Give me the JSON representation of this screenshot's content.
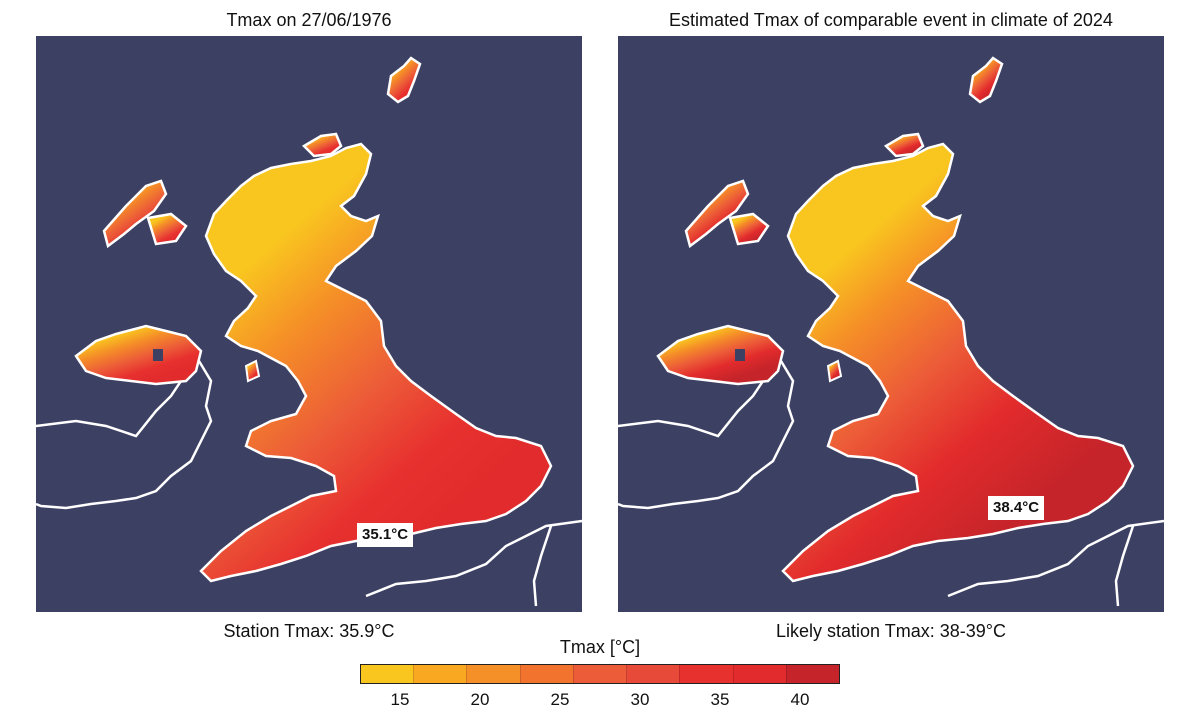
{
  "panels": [
    {
      "title": "Tmax on 27/06/1976",
      "caption": "Station Tmax: 35.9°C",
      "label": "35.1°C",
      "max_temp": 35.1
    },
    {
      "title": "Estimated Tmax of comparable event in climate of 2024",
      "caption": "Likely station Tmax: 38-39°C",
      "label": "38.4°C",
      "max_temp": 38.4
    }
  ],
  "colorbar": {
    "title": "Tmax [°C]",
    "ticks": [
      "15",
      "20",
      "25",
      "30",
      "35",
      "40"
    ],
    "colors": [
      "#f9c51f",
      "#f8a821",
      "#f58f27",
      "#f1732e",
      "#ec5c38",
      "#e84a3a",
      "#e7312f",
      "#e22b2c",
      "#c4242a"
    ]
  },
  "theme": {
    "sea": "#3c4063",
    "coast": "#ffffff"
  }
}
